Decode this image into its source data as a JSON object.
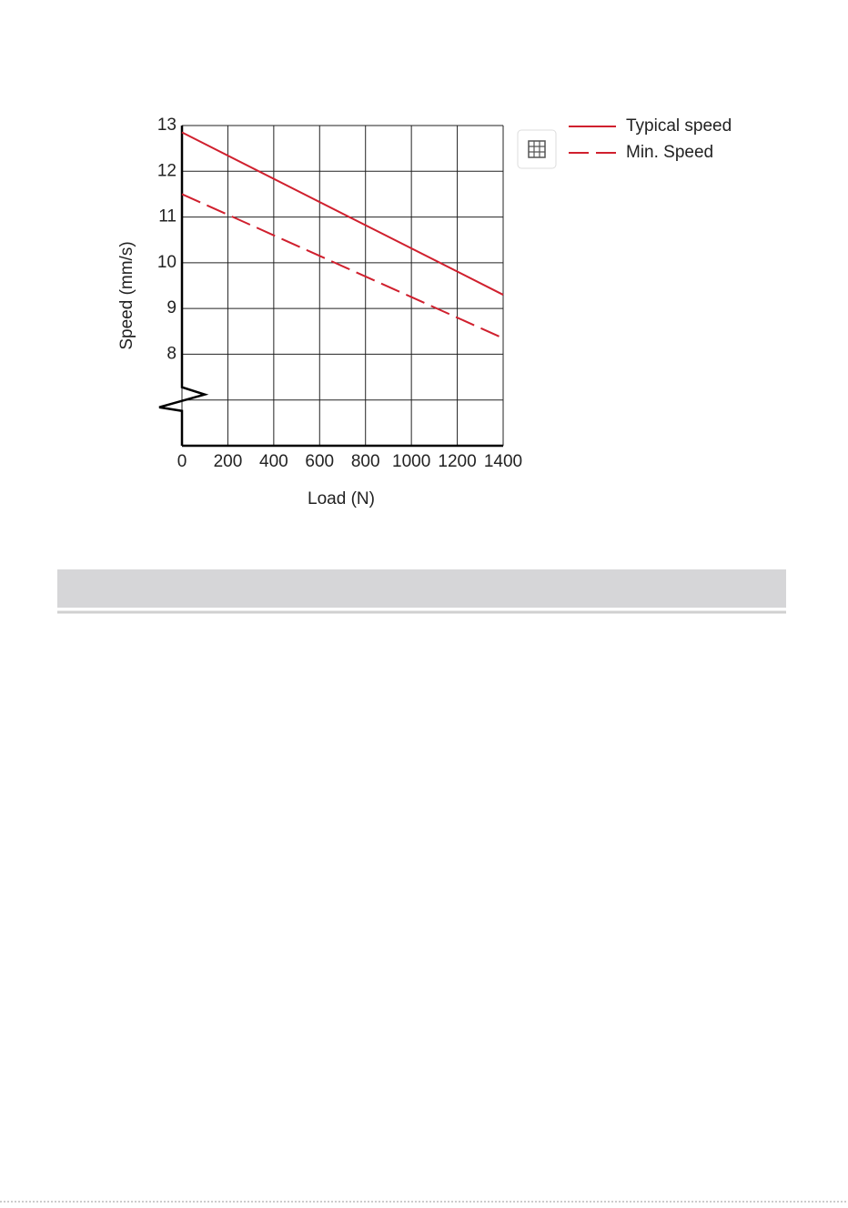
{
  "chart_data": {
    "type": "line",
    "x_label": "Load (N)",
    "y_label": "Speed (mm/s)",
    "x": [
      0,
      1400
    ],
    "series": [
      {
        "name": "Typical speed",
        "color": "#d0202e",
        "dash": false,
        "values": [
          12.85,
          9.3
        ]
      },
      {
        "name": "Min. Speed",
        "color": "#d0202e",
        "dash": true,
        "values": [
          11.5,
          8.35
        ]
      }
    ],
    "xlim": [
      0,
      1400
    ],
    "xticks": [
      0,
      200,
      400,
      600,
      800,
      1000,
      1200,
      1400
    ],
    "ylim": [
      6,
      13
    ],
    "yticks": [
      8,
      9,
      10,
      11,
      12,
      13
    ],
    "ygrid": [
      7,
      8,
      9,
      10,
      11,
      12,
      13
    ],
    "grid": true,
    "axis_break": true,
    "legend": "right"
  }
}
